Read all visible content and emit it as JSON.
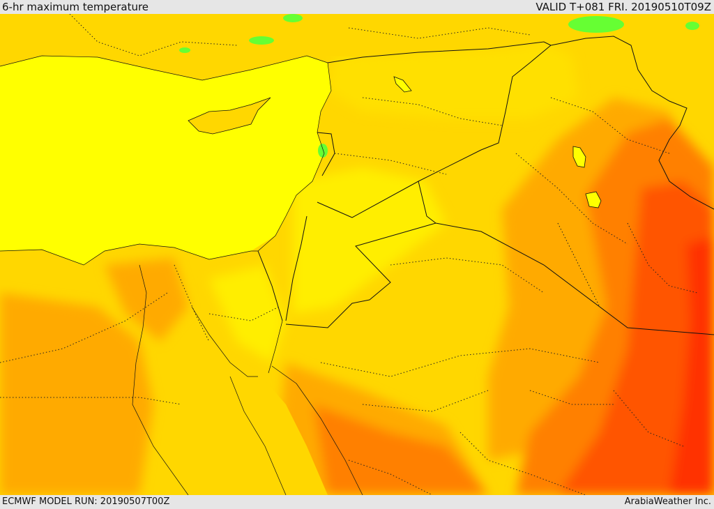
{
  "header": {
    "title": "6-hr maximum temperature",
    "valid": "VALID T+081 FRI. 20190510T09Z"
  },
  "footer": {
    "model_run": "ECMWF MODEL RUN: 20190507T00Z",
    "credit": "ArabiaWeather Inc."
  },
  "colors": {
    "sea_yellow": "#ffff00",
    "light_orange": "#ffd700",
    "orange": "#ffaa00",
    "dark_orange": "#ff8000",
    "red_orange": "#ff5500",
    "red": "#ff3300",
    "green": "#66ff33",
    "border_line": "#111111"
  }
}
